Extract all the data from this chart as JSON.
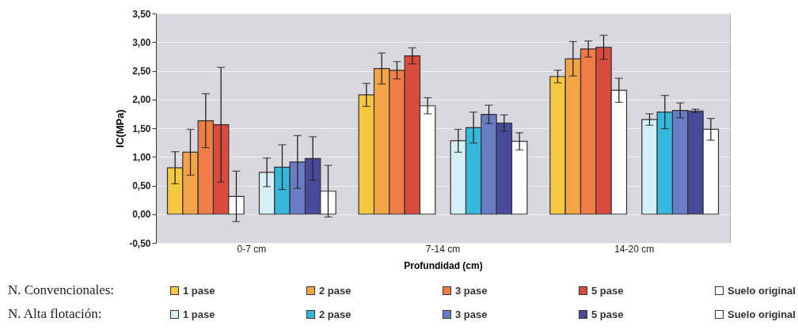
{
  "chart_data": {
    "type": "bar",
    "xlabel": "Profundidad (cm)",
    "ylabel": "IC(MPa)",
    "categories": [
      "0-7 cm",
      "7-14 cm",
      "14-20 cm"
    ],
    "series": [
      {
        "name": "1 pase",
        "color": "#f5c842",
        "values": [
          0.81,
          2.08,
          2.4
        ],
        "errors": [
          0.28,
          0.2,
          0.11
        ]
      },
      {
        "name": "2 pase",
        "color": "#f2a447",
        "values": [
          1.08,
          2.54,
          2.71
        ],
        "errors": [
          0.4,
          0.27,
          0.3
        ]
      },
      {
        "name": "3 pase",
        "color": "#ef7d45",
        "values": [
          1.63,
          2.51,
          2.88
        ],
        "errors": [
          0.47,
          0.15,
          0.14
        ]
      },
      {
        "name": "5 pase",
        "color": "#d94b3c",
        "values": [
          1.56,
          2.76,
          2.91
        ],
        "errors": [
          1.0,
          0.14,
          0.21
        ]
      },
      {
        "name": "Suelo original",
        "color": "#ffffff",
        "values": [
          0.31,
          1.89,
          2.16
        ],
        "errors": [
          0.44,
          0.14,
          0.21
        ]
      },
      {
        "name": "1 pase",
        "color": "#d6eef6",
        "values": [
          0.73,
          1.28,
          1.65
        ],
        "errors": [
          0.25,
          0.2,
          0.1
        ]
      },
      {
        "name": "2 pase",
        "color": "#35b8dc",
        "values": [
          0.82,
          1.51,
          1.78
        ],
        "errors": [
          0.39,
          0.27,
          0.29
        ]
      },
      {
        "name": "3 pase",
        "color": "#6a7cc4",
        "values": [
          0.91,
          1.74,
          1.81
        ],
        "errors": [
          0.46,
          0.16,
          0.13
        ]
      },
      {
        "name": "5 pase",
        "color": "#4a4a9a",
        "values": [
          0.97,
          1.59,
          1.8
        ],
        "errors": [
          0.38,
          0.14,
          0.03
        ]
      },
      {
        "name": "Suelo original",
        "color": "#ffffff",
        "values": [
          0.4,
          1.27,
          1.48
        ],
        "errors": [
          0.45,
          0.15,
          0.19
        ]
      }
    ],
    "ylim": [
      -0.5,
      3.5
    ],
    "yticks": [
      {
        "value": -0.5,
        "label": "-0,50"
      },
      {
        "value": 0,
        "label": "0,00"
      },
      {
        "value": 0.5,
        "label": "0,50"
      },
      {
        "value": 1,
        "label": "1,00"
      },
      {
        "value": 1.5,
        "label": "1,50"
      },
      {
        "value": 2,
        "label": "2,00"
      },
      {
        "value": 2.5,
        "label": "2,50"
      },
      {
        "value": 3,
        "label": "3,00"
      },
      {
        "value": 3.5,
        "label": "3,50"
      }
    ],
    "grid": "y",
    "legend": "bottom",
    "annotations": [
      "N. Convencionales:",
      "N. Alta flotación:"
    ]
  }
}
